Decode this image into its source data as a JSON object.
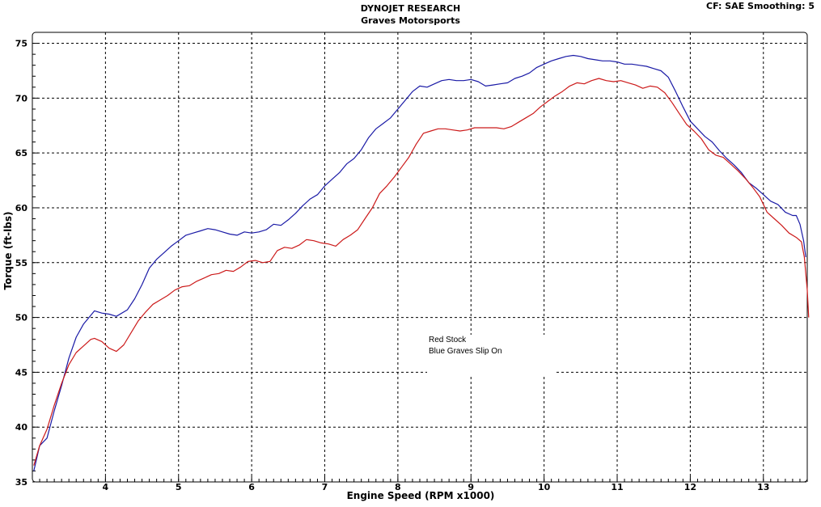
{
  "header": {
    "title": "DYNOJET RESEARCH",
    "subtitle": "Graves Motorsports",
    "corner_info": "CF: SAE  Smoothing: 5"
  },
  "legend": {
    "line1": "Red Stock",
    "line2": "Blue Graves Slip On"
  },
  "chart_data": {
    "type": "line",
    "title": "DYNOJET RESEARCH",
    "subtitle": "Graves Motorsports",
    "xlabel": "Engine Speed (RPM x1000)",
    "ylabel": "Torque (ft-lbs)",
    "xlim": [
      3.0,
      13.6
    ],
    "ylim": [
      35,
      76
    ],
    "x_ticks": [
      4,
      5,
      6,
      7,
      8,
      9,
      10,
      11,
      12,
      13
    ],
    "y_ticks": [
      35,
      40,
      45,
      50,
      55,
      60,
      65,
      70,
      75
    ],
    "grid": true,
    "legend_placement": "center-bottom",
    "series": [
      {
        "name": "Blue Graves Slip On",
        "color": "#1a1aa6",
        "points": [
          [
            3.02,
            36.0
          ],
          [
            3.1,
            38.3
          ],
          [
            3.2,
            39.0
          ],
          [
            3.3,
            41.5
          ],
          [
            3.4,
            43.8
          ],
          [
            3.5,
            46.3
          ],
          [
            3.6,
            48.2
          ],
          [
            3.7,
            49.4
          ],
          [
            3.8,
            50.2
          ],
          [
            3.85,
            50.6
          ],
          [
            3.95,
            50.4
          ],
          [
            4.05,
            50.3
          ],
          [
            4.15,
            50.1
          ],
          [
            4.3,
            50.7
          ],
          [
            4.4,
            51.7
          ],
          [
            4.5,
            53.0
          ],
          [
            4.6,
            54.5
          ],
          [
            4.7,
            55.3
          ],
          [
            4.8,
            55.9
          ],
          [
            4.9,
            56.5
          ],
          [
            5.0,
            57.0
          ],
          [
            5.1,
            57.5
          ],
          [
            5.2,
            57.7
          ],
          [
            5.3,
            57.9
          ],
          [
            5.4,
            58.1
          ],
          [
            5.5,
            58.0
          ],
          [
            5.6,
            57.8
          ],
          [
            5.7,
            57.6
          ],
          [
            5.8,
            57.5
          ],
          [
            5.9,
            57.8
          ],
          [
            6.0,
            57.7
          ],
          [
            6.1,
            57.8
          ],
          [
            6.2,
            58.0
          ],
          [
            6.3,
            58.5
          ],
          [
            6.4,
            58.4
          ],
          [
            6.5,
            58.9
          ],
          [
            6.6,
            59.5
          ],
          [
            6.7,
            60.2
          ],
          [
            6.8,
            60.8
          ],
          [
            6.9,
            61.2
          ],
          [
            7.0,
            62.0
          ],
          [
            7.1,
            62.6
          ],
          [
            7.2,
            63.2
          ],
          [
            7.3,
            64.0
          ],
          [
            7.4,
            64.5
          ],
          [
            7.5,
            65.3
          ],
          [
            7.6,
            66.4
          ],
          [
            7.7,
            67.2
          ],
          [
            7.8,
            67.7
          ],
          [
            7.9,
            68.2
          ],
          [
            8.0,
            69.0
          ],
          [
            8.1,
            69.8
          ],
          [
            8.2,
            70.6
          ],
          [
            8.3,
            71.1
          ],
          [
            8.4,
            71.0
          ],
          [
            8.5,
            71.3
          ],
          [
            8.6,
            71.6
          ],
          [
            8.7,
            71.7
          ],
          [
            8.8,
            71.6
          ],
          [
            8.9,
            71.6
          ],
          [
            9.0,
            71.7
          ],
          [
            9.1,
            71.5
          ],
          [
            9.2,
            71.1
          ],
          [
            9.3,
            71.2
          ],
          [
            9.4,
            71.3
          ],
          [
            9.5,
            71.4
          ],
          [
            9.6,
            71.8
          ],
          [
            9.7,
            72.0
          ],
          [
            9.8,
            72.3
          ],
          [
            9.9,
            72.8
          ],
          [
            10.0,
            73.1
          ],
          [
            10.1,
            73.4
          ],
          [
            10.2,
            73.6
          ],
          [
            10.3,
            73.8
          ],
          [
            10.4,
            73.9
          ],
          [
            10.5,
            73.8
          ],
          [
            10.6,
            73.6
          ],
          [
            10.7,
            73.5
          ],
          [
            10.8,
            73.4
          ],
          [
            10.9,
            73.4
          ],
          [
            11.0,
            73.3
          ],
          [
            11.1,
            73.1
          ],
          [
            11.2,
            73.1
          ],
          [
            11.3,
            73.0
          ],
          [
            11.4,
            72.9
          ],
          [
            11.5,
            72.7
          ],
          [
            11.6,
            72.5
          ],
          [
            11.7,
            71.9
          ],
          [
            11.8,
            70.6
          ],
          [
            11.9,
            69.2
          ],
          [
            12.0,
            67.9
          ],
          [
            12.1,
            67.2
          ],
          [
            12.2,
            66.5
          ],
          [
            12.3,
            66.0
          ],
          [
            12.4,
            65.2
          ],
          [
            12.5,
            64.5
          ],
          [
            12.6,
            63.9
          ],
          [
            12.7,
            63.2
          ],
          [
            12.8,
            62.3
          ],
          [
            12.9,
            61.8
          ],
          [
            13.0,
            61.2
          ],
          [
            13.1,
            60.6
          ],
          [
            13.2,
            60.3
          ],
          [
            13.3,
            59.6
          ],
          [
            13.4,
            59.3
          ],
          [
            13.45,
            59.3
          ],
          [
            13.5,
            58.5
          ],
          [
            13.55,
            57.0
          ],
          [
            13.58,
            55.5
          ]
        ]
      },
      {
        "name": "Red Stock",
        "color": "#cc1a1a",
        "points": [
          [
            3.02,
            36.5
          ],
          [
            3.1,
            38.3
          ],
          [
            3.2,
            39.8
          ],
          [
            3.3,
            42.0
          ],
          [
            3.4,
            44.0
          ],
          [
            3.5,
            45.7
          ],
          [
            3.6,
            46.8
          ],
          [
            3.7,
            47.4
          ],
          [
            3.8,
            48.0
          ],
          [
            3.85,
            48.1
          ],
          [
            3.95,
            47.8
          ],
          [
            4.05,
            47.2
          ],
          [
            4.15,
            46.9
          ],
          [
            4.25,
            47.5
          ],
          [
            4.35,
            48.6
          ],
          [
            4.45,
            49.7
          ],
          [
            4.55,
            50.5
          ],
          [
            4.65,
            51.2
          ],
          [
            4.75,
            51.6
          ],
          [
            4.85,
            52.0
          ],
          [
            4.95,
            52.5
          ],
          [
            5.05,
            52.8
          ],
          [
            5.15,
            52.9
          ],
          [
            5.25,
            53.3
          ],
          [
            5.35,
            53.6
          ],
          [
            5.45,
            53.9
          ],
          [
            5.55,
            54.0
          ],
          [
            5.65,
            54.3
          ],
          [
            5.75,
            54.2
          ],
          [
            5.85,
            54.6
          ],
          [
            5.95,
            55.1
          ],
          [
            6.05,
            55.2
          ],
          [
            6.15,
            55.0
          ],
          [
            6.25,
            55.1
          ],
          [
            6.35,
            56.1
          ],
          [
            6.45,
            56.4
          ],
          [
            6.55,
            56.3
          ],
          [
            6.65,
            56.6
          ],
          [
            6.75,
            57.1
          ],
          [
            6.85,
            57.0
          ],
          [
            6.95,
            56.8
          ],
          [
            7.05,
            56.7
          ],
          [
            7.15,
            56.5
          ],
          [
            7.25,
            57.1
          ],
          [
            7.35,
            57.5
          ],
          [
            7.45,
            58.0
          ],
          [
            7.55,
            59.0
          ],
          [
            7.65,
            60.0
          ],
          [
            7.75,
            61.3
          ],
          [
            7.85,
            62.0
          ],
          [
            7.95,
            62.8
          ],
          [
            8.05,
            63.7
          ],
          [
            8.15,
            64.6
          ],
          [
            8.25,
            65.8
          ],
          [
            8.35,
            66.8
          ],
          [
            8.45,
            67.0
          ],
          [
            8.55,
            67.2
          ],
          [
            8.65,
            67.2
          ],
          [
            8.75,
            67.1
          ],
          [
            8.85,
            67.0
          ],
          [
            8.95,
            67.1
          ],
          [
            9.05,
            67.3
          ],
          [
            9.15,
            67.3
          ],
          [
            9.25,
            67.3
          ],
          [
            9.35,
            67.3
          ],
          [
            9.45,
            67.2
          ],
          [
            9.55,
            67.4
          ],
          [
            9.65,
            67.8
          ],
          [
            9.75,
            68.2
          ],
          [
            9.85,
            68.6
          ],
          [
            9.95,
            69.2
          ],
          [
            10.05,
            69.7
          ],
          [
            10.15,
            70.2
          ],
          [
            10.25,
            70.6
          ],
          [
            10.35,
            71.1
          ],
          [
            10.45,
            71.4
          ],
          [
            10.55,
            71.3
          ],
          [
            10.65,
            71.6
          ],
          [
            10.75,
            71.8
          ],
          [
            10.85,
            71.6
          ],
          [
            10.95,
            71.5
          ],
          [
            11.05,
            71.6
          ],
          [
            11.15,
            71.4
          ],
          [
            11.25,
            71.2
          ],
          [
            11.35,
            70.9
          ],
          [
            11.45,
            71.1
          ],
          [
            11.55,
            71.0
          ],
          [
            11.65,
            70.5
          ],
          [
            11.75,
            69.6
          ],
          [
            11.85,
            68.6
          ],
          [
            11.95,
            67.6
          ],
          [
            12.05,
            67.0
          ],
          [
            12.15,
            66.3
          ],
          [
            12.25,
            65.3
          ],
          [
            12.35,
            64.8
          ],
          [
            12.45,
            64.6
          ],
          [
            12.55,
            64.0
          ],
          [
            12.65,
            63.4
          ],
          [
            12.75,
            62.7
          ],
          [
            12.85,
            61.9
          ],
          [
            12.95,
            61.0
          ],
          [
            13.05,
            59.6
          ],
          [
            13.15,
            59.0
          ],
          [
            13.25,
            58.4
          ],
          [
            13.35,
            57.7
          ],
          [
            13.45,
            57.3
          ],
          [
            13.52,
            56.9
          ],
          [
            13.56,
            55.5
          ],
          [
            13.6,
            52.5
          ],
          [
            13.62,
            50.0
          ]
        ]
      }
    ]
  }
}
